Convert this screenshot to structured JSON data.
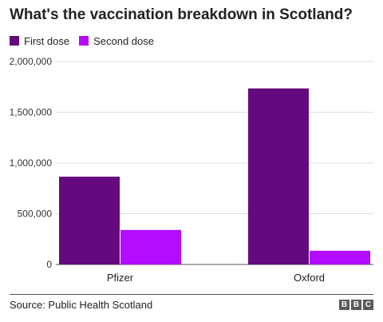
{
  "chart_data": {
    "type": "bar",
    "title": "What's the vaccination breakdown in Scotland?",
    "categories": [
      "Pfizer",
      "Oxford"
    ],
    "series": [
      {
        "name": "First dose",
        "values": [
          865000,
          1735000
        ],
        "color": "#640a7e"
      },
      {
        "name": "Second dose",
        "values": [
          340000,
          135000
        ],
        "color": "#b30cff"
      }
    ],
    "ylim": [
      0,
      2000000
    ],
    "yticks": [
      0,
      500000,
      1000000,
      1500000,
      2000000
    ],
    "ytick_labels": [
      "0",
      "500,000",
      "1,000,000",
      "1,500,000",
      "2,000,000"
    ],
    "xlabel": "",
    "ylabel": "",
    "grid": true,
    "legend": "top-left"
  },
  "footer": {
    "source": "Source: Public Health Scotland",
    "logo_letters": [
      "B",
      "B",
      "C"
    ]
  }
}
